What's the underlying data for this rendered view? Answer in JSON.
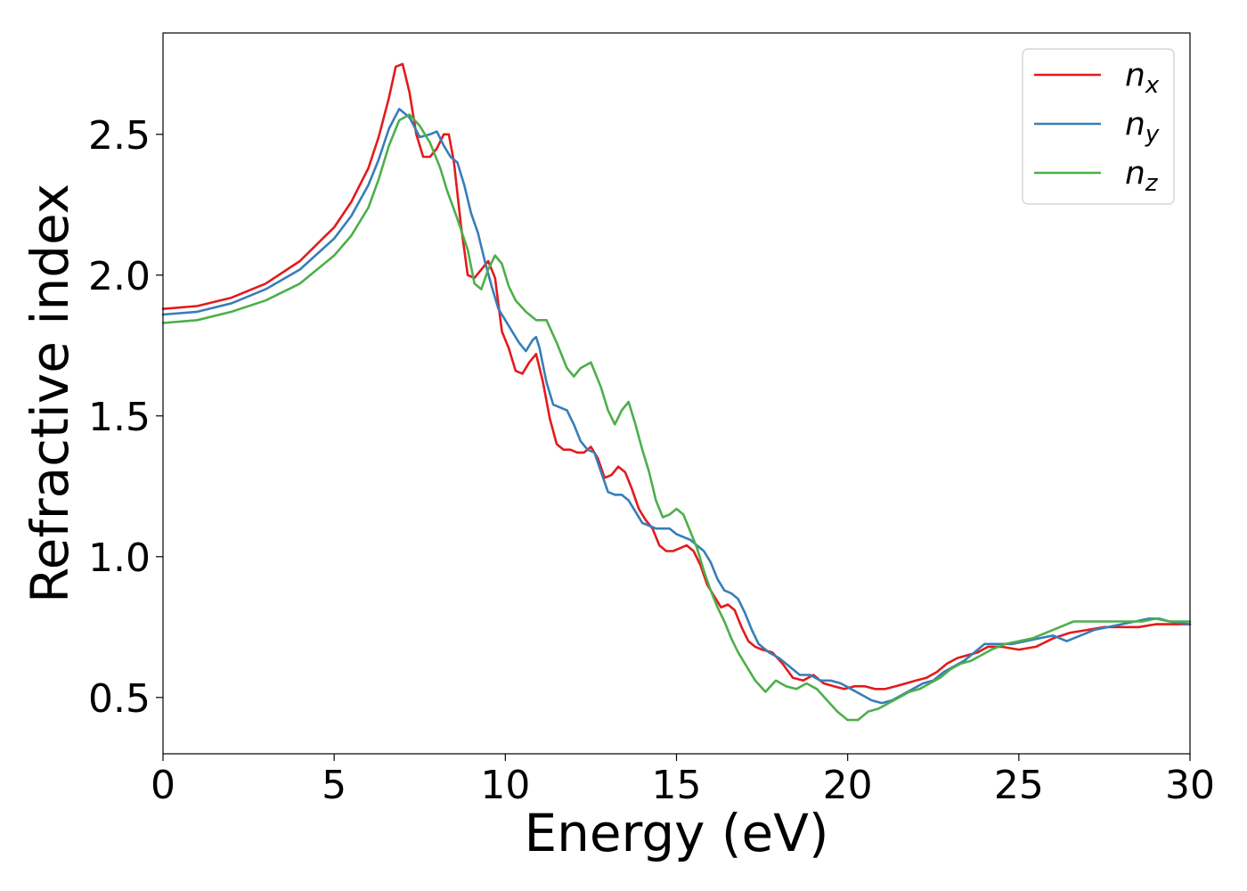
{
  "chart_data": {
    "type": "line",
    "xlabel": "Energy (eV)",
    "ylabel": "Refractive index",
    "xlim": [
      0,
      30
    ],
    "ylim": [
      0.3,
      2.86
    ],
    "xticks": [
      0,
      5,
      10,
      15,
      20,
      25,
      30
    ],
    "xtick_labels": [
      "0",
      "5",
      "10",
      "15",
      "20",
      "25",
      "30"
    ],
    "yticks": [
      0.5,
      1.0,
      1.5,
      2.0,
      2.5
    ],
    "ytick_labels": [
      "0.5",
      "1.0",
      "1.5",
      "2.0",
      "2.5"
    ],
    "grid": false,
    "legend_position": "top-right",
    "series": [
      {
        "name": "n",
        "subscript": "x",
        "color": "#e41a1c",
        "x": [
          0,
          1,
          2,
          3,
          4,
          5,
          5.5,
          6,
          6.3,
          6.6,
          6.8,
          7.0,
          7.2,
          7.4,
          7.6,
          7.8,
          8.0,
          8.2,
          8.35,
          8.5,
          8.7,
          8.9,
          9.1,
          9.3,
          9.5,
          9.7,
          9.9,
          10.1,
          10.3,
          10.5,
          10.7,
          10.9,
          11.1,
          11.3,
          11.5,
          11.7,
          11.9,
          12.1,
          12.3,
          12.5,
          12.7,
          12.9,
          13.1,
          13.3,
          13.5,
          13.7,
          13.9,
          14.1,
          14.3,
          14.5,
          14.7,
          14.9,
          15.1,
          15.3,
          15.5,
          15.7,
          15.9,
          16.1,
          16.3,
          16.5,
          16.7,
          16.9,
          17.1,
          17.3,
          17.5,
          17.8,
          18.1,
          18.4,
          18.7,
          19.0,
          19.3,
          19.6,
          19.9,
          20.2,
          20.5,
          20.8,
          21.1,
          21.4,
          21.7,
          22.0,
          22.3,
          22.6,
          22.9,
          23.2,
          23.5,
          23.8,
          24.1,
          24.5,
          25.0,
          25.5,
          26.0,
          26.5,
          27.0,
          27.5,
          28.0,
          28.5,
          29.0,
          29.5,
          30
        ],
        "y": [
          1.88,
          1.89,
          1.92,
          1.97,
          2.05,
          2.17,
          2.26,
          2.38,
          2.49,
          2.63,
          2.74,
          2.75,
          2.65,
          2.5,
          2.42,
          2.42,
          2.45,
          2.5,
          2.5,
          2.4,
          2.18,
          2.0,
          1.99,
          2.02,
          2.05,
          1.99,
          1.8,
          1.74,
          1.66,
          1.65,
          1.69,
          1.72,
          1.62,
          1.49,
          1.4,
          1.38,
          1.38,
          1.37,
          1.37,
          1.39,
          1.35,
          1.28,
          1.29,
          1.32,
          1.3,
          1.24,
          1.17,
          1.13,
          1.1,
          1.04,
          1.02,
          1.02,
          1.03,
          1.04,
          1.02,
          0.97,
          0.9,
          0.86,
          0.82,
          0.83,
          0.81,
          0.75,
          0.7,
          0.68,
          0.67,
          0.66,
          0.62,
          0.57,
          0.56,
          0.58,
          0.55,
          0.54,
          0.53,
          0.54,
          0.54,
          0.53,
          0.53,
          0.54,
          0.55,
          0.56,
          0.57,
          0.59,
          0.62,
          0.64,
          0.65,
          0.66,
          0.68,
          0.68,
          0.67,
          0.68,
          0.71,
          0.73,
          0.74,
          0.75,
          0.75,
          0.75,
          0.76,
          0.76,
          0.76
        ]
      },
      {
        "name": "n",
        "subscript": "y",
        "color": "#377eb8",
        "x": [
          0,
          1,
          2,
          3,
          4,
          5,
          5.5,
          6,
          6.3,
          6.6,
          6.9,
          7.2,
          7.5,
          7.8,
          8.0,
          8.2,
          8.4,
          8.6,
          8.8,
          9.0,
          9.2,
          9.4,
          9.6,
          9.8,
          10.0,
          10.2,
          10.4,
          10.6,
          10.8,
          10.9,
          11.0,
          11.2,
          11.4,
          11.6,
          11.8,
          12.0,
          12.2,
          12.4,
          12.6,
          12.8,
          13.0,
          13.2,
          13.4,
          13.6,
          13.8,
          14.0,
          14.2,
          14.4,
          14.6,
          14.8,
          15.0,
          15.2,
          15.4,
          15.6,
          15.8,
          16.0,
          16.2,
          16.4,
          16.6,
          16.8,
          17.0,
          17.2,
          17.4,
          17.7,
          18.0,
          18.3,
          18.6,
          18.9,
          19.2,
          19.5,
          19.8,
          20.1,
          20.4,
          20.7,
          21.0,
          21.3,
          21.6,
          21.9,
          22.2,
          22.5,
          22.8,
          23.1,
          23.4,
          23.7,
          24.0,
          24.4,
          24.8,
          25.2,
          25.6,
          26.0,
          26.4,
          26.8,
          27.2,
          27.6,
          28.0,
          28.4,
          28.8,
          29.1,
          29.4,
          30
        ],
        "y": [
          1.86,
          1.87,
          1.9,
          1.95,
          2.02,
          2.13,
          2.21,
          2.32,
          2.41,
          2.52,
          2.59,
          2.56,
          2.49,
          2.5,
          2.51,
          2.46,
          2.42,
          2.4,
          2.32,
          2.22,
          2.15,
          2.05,
          1.96,
          1.88,
          1.84,
          1.8,
          1.76,
          1.73,
          1.77,
          1.78,
          1.74,
          1.62,
          1.54,
          1.53,
          1.52,
          1.47,
          1.41,
          1.38,
          1.37,
          1.3,
          1.23,
          1.22,
          1.22,
          1.2,
          1.16,
          1.12,
          1.11,
          1.1,
          1.1,
          1.1,
          1.08,
          1.07,
          1.06,
          1.04,
          1.02,
          0.98,
          0.92,
          0.88,
          0.87,
          0.85,
          0.8,
          0.74,
          0.69,
          0.66,
          0.64,
          0.61,
          0.58,
          0.58,
          0.56,
          0.56,
          0.55,
          0.53,
          0.51,
          0.49,
          0.48,
          0.49,
          0.51,
          0.53,
          0.55,
          0.56,
          0.59,
          0.61,
          0.63,
          0.66,
          0.69,
          0.69,
          0.69,
          0.7,
          0.71,
          0.72,
          0.7,
          0.72,
          0.74,
          0.75,
          0.76,
          0.77,
          0.78,
          0.78,
          0.77,
          0.76
        ]
      },
      {
        "name": "n",
        "subscript": "z",
        "color": "#4daf4a",
        "x": [
          0,
          1,
          2,
          3,
          4,
          5,
          5.5,
          6,
          6.3,
          6.6,
          6.9,
          7.2,
          7.5,
          7.8,
          8.1,
          8.3,
          8.6,
          8.9,
          9.1,
          9.3,
          9.5,
          9.7,
          9.9,
          10.1,
          10.3,
          10.6,
          10.9,
          11.2,
          11.5,
          11.8,
          12.0,
          12.2,
          12.5,
          12.8,
          13.0,
          13.2,
          13.4,
          13.6,
          13.8,
          14.0,
          14.2,
          14.4,
          14.6,
          14.8,
          15.0,
          15.2,
          15.4,
          15.6,
          15.8,
          16.0,
          16.2,
          16.4,
          16.6,
          16.8,
          17.0,
          17.3,
          17.6,
          17.9,
          18.2,
          18.5,
          18.8,
          19.1,
          19.4,
          19.7,
          20.0,
          20.3,
          20.6,
          20.9,
          21.2,
          21.5,
          21.8,
          22.1,
          22.4,
          22.7,
          23.0,
          23.3,
          23.6,
          23.9,
          24.2,
          24.6,
          25.0,
          25.4,
          25.8,
          26.2,
          26.6,
          27.0,
          27.4,
          27.8,
          28.2,
          28.6,
          29.0,
          29.4,
          30
        ],
        "y": [
          1.83,
          1.84,
          1.87,
          1.91,
          1.97,
          2.07,
          2.14,
          2.24,
          2.34,
          2.46,
          2.55,
          2.57,
          2.53,
          2.47,
          2.38,
          2.3,
          2.2,
          2.09,
          1.97,
          1.95,
          2.02,
          2.07,
          2.04,
          1.96,
          1.91,
          1.87,
          1.84,
          1.84,
          1.76,
          1.67,
          1.64,
          1.67,
          1.69,
          1.6,
          1.52,
          1.47,
          1.52,
          1.55,
          1.47,
          1.38,
          1.3,
          1.2,
          1.14,
          1.15,
          1.17,
          1.15,
          1.09,
          1.03,
          0.95,
          0.88,
          0.82,
          0.77,
          0.71,
          0.66,
          0.62,
          0.56,
          0.52,
          0.56,
          0.54,
          0.53,
          0.55,
          0.53,
          0.49,
          0.45,
          0.42,
          0.42,
          0.45,
          0.46,
          0.48,
          0.5,
          0.52,
          0.53,
          0.55,
          0.57,
          0.6,
          0.62,
          0.63,
          0.65,
          0.67,
          0.69,
          0.7,
          0.71,
          0.73,
          0.75,
          0.77,
          0.77,
          0.77,
          0.77,
          0.77,
          0.77,
          0.78,
          0.77,
          0.77
        ]
      }
    ]
  }
}
